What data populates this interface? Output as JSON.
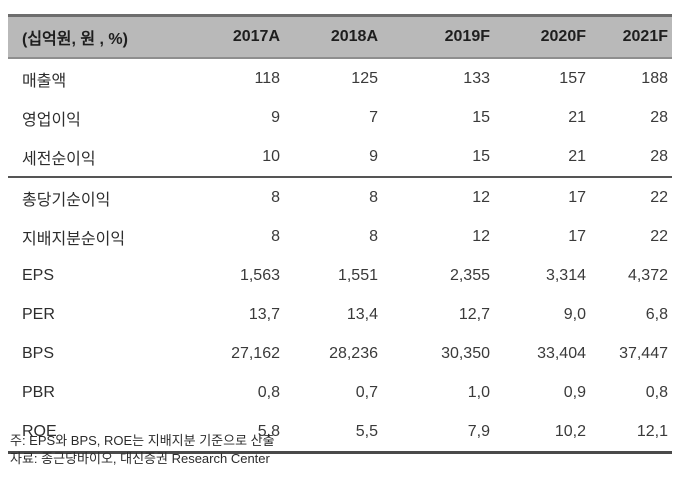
{
  "table": {
    "unit_label": "(십억원, 원 , %)",
    "columns": [
      "2017A",
      "2018A",
      "2019F",
      "2020F",
      "2021F"
    ],
    "rows": [
      {
        "label": "매출액",
        "values": [
          "118",
          "125",
          "133",
          "157",
          "188"
        ]
      },
      {
        "label": "영업이익",
        "values": [
          "9",
          "7",
          "15",
          "21",
          "28"
        ]
      },
      {
        "label": "세전순이익",
        "values": [
          "10",
          "9",
          "15",
          "21",
          "28"
        ]
      },
      {
        "label": "총당기순이익",
        "values": [
          "8",
          "8",
          "12",
          "17",
          "22"
        ]
      },
      {
        "label": "지배지분순이익",
        "values": [
          "8",
          "8",
          "12",
          "17",
          "22"
        ]
      },
      {
        "label": "EPS",
        "values": [
          "1,563",
          "1,551",
          "2,355",
          "3,314",
          "4,372"
        ]
      },
      {
        "label": "PER",
        "values": [
          "13,7",
          "13,4",
          "12,7",
          "9,0",
          "6,8"
        ]
      },
      {
        "label": "BPS",
        "values": [
          "27,162",
          "28,236",
          "30,350",
          "33,404",
          "37,447"
        ]
      },
      {
        "label": "PBR",
        "values": [
          "0,8",
          "0,7",
          "1,0",
          "0,9",
          "0,8"
        ]
      },
      {
        "label": "ROE",
        "values": [
          "5,8",
          "5,5",
          "7,9",
          "10,2",
          "12,1"
        ]
      }
    ]
  },
  "notes": [
    "주: EPS와 BPS, ROE는 지배지분 기준으로 산출",
    "자료: 종근당바이오, 대신증권 Research Center"
  ],
  "colors": {
    "header_background": "#b9b9b9",
    "header_top_border": "#6d6d6d",
    "header_bottom_border": "#8e8e8e",
    "section_divider": "#555555",
    "bottom_rule": "#4a4a4a",
    "text": "#3a3a3a",
    "page_background": "#ffffff"
  }
}
